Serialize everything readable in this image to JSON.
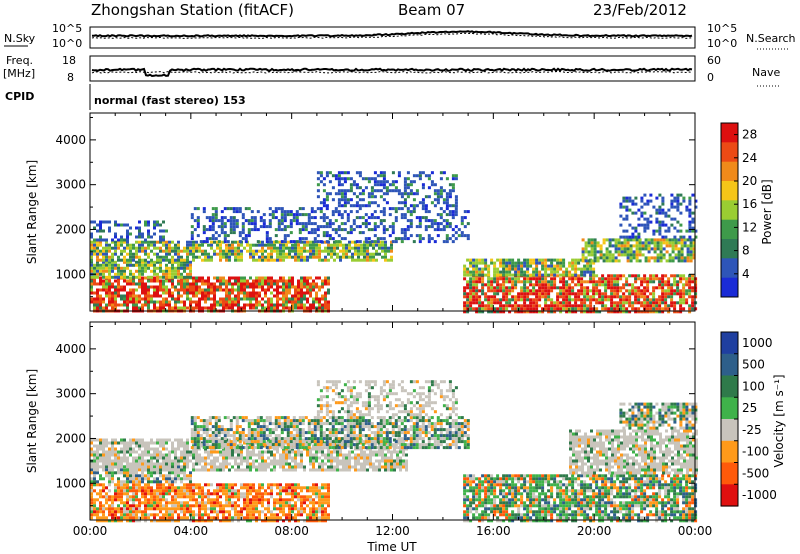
{
  "header": {
    "station": "Zhongshan Station (fitACF)",
    "beam": "Beam 07",
    "date": "23/Feb/2012"
  },
  "strips": {
    "nsky": {
      "label": "N.Sky",
      "tick_top": "10^5",
      "tick_bottom": "10^0",
      "right_label": "N.Search",
      "right_top": "10^5",
      "right_bottom": "10^0"
    },
    "freq": {
      "label_top": "Freq.",
      "label_bottom": "[MHz]",
      "tick_top": "18",
      "tick_bottom": "8",
      "right_label": "Nave",
      "right_top": "60",
      "right_bottom": "0"
    },
    "cpid": {
      "label": "CPID",
      "text": "normal (fast stereo) 153"
    }
  },
  "colors": {
    "power": [
      "#1a2bd6",
      "#2e55b8",
      "#2f7a55",
      "#3e9a4a",
      "#9acd32",
      "#f5c518",
      "#f08a1a",
      "#ec4a15",
      "#dd1010"
    ],
    "velocity": [
      "#e01010",
      "#ff5a0a",
      "#ff9a1a",
      "#c8c4bc",
      "#3fb24a",
      "#2f7a4a",
      "#2e5f8a",
      "#1f3fa0"
    ]
  },
  "chart_data": [
    {
      "type": "heatmap",
      "title": "",
      "xlabel": "",
      "ylabel": "Slant Range [km]",
      "x_range": [
        "00:00",
        "24:00"
      ],
      "ylim": [
        180,
        4600
      ],
      "x_ticks": [
        "00:00",
        "04:00",
        "08:00",
        "12:00",
        "16:00",
        "20:00",
        "00:00"
      ],
      "y_ticks": [
        1000,
        2000,
        3000,
        4000
      ],
      "colorbar": {
        "label": "Power [dB]",
        "ticks": [
          4,
          8,
          12,
          16,
          20,
          24,
          28
        ],
        "range": [
          0,
          30
        ]
      },
      "regions": [
        {
          "t0": 0.0,
          "t1": 9.5,
          "r0": 180,
          "r1": 950,
          "level": "high"
        },
        {
          "t0": 0.0,
          "t1": 4.0,
          "r0": 950,
          "r1": 1300,
          "level": "mid"
        },
        {
          "t0": 0.0,
          "t1": 12.0,
          "r0": 1300,
          "r1": 1750,
          "level": "mid"
        },
        {
          "t0": 0.0,
          "t1": 3.0,
          "r0": 1750,
          "r1": 2200,
          "level": "low"
        },
        {
          "t0": 4.0,
          "t1": 15.0,
          "r0": 1750,
          "r1": 2500,
          "level": "low"
        },
        {
          "t0": 9.0,
          "t1": 14.5,
          "r0": 2500,
          "r1": 3300,
          "level": "low"
        },
        {
          "t0": 14.8,
          "t1": 24.0,
          "r0": 180,
          "r1": 1000,
          "level": "high"
        },
        {
          "t0": 14.8,
          "t1": 20.0,
          "r0": 1000,
          "r1": 1350,
          "level": "mid"
        },
        {
          "t0": 19.5,
          "t1": 24.0,
          "r0": 1300,
          "r1": 1800,
          "level": "mid"
        },
        {
          "t0": 21.0,
          "t1": 24.0,
          "r0": 1800,
          "r1": 2800,
          "level": "low"
        }
      ]
    },
    {
      "type": "heatmap",
      "title": "",
      "xlabel": "Time UT",
      "ylabel": "Slant Range [km]",
      "x_range": [
        "00:00",
        "24:00"
      ],
      "ylim": [
        180,
        4600
      ],
      "x_ticks": [
        "00:00",
        "04:00",
        "08:00",
        "12:00",
        "16:00",
        "20:00",
        "00:00"
      ],
      "y_ticks": [
        1000,
        2000,
        3000,
        4000
      ],
      "colorbar": {
        "label": "Velocity [m s⁻¹]",
        "ticks": [
          1000,
          500,
          100,
          25,
          -25,
          -100,
          -500,
          -1000
        ]
      },
      "regions": [
        {
          "t0": 0.0,
          "t1": 9.5,
          "r0": 180,
          "r1": 1000,
          "level": "away"
        },
        {
          "t0": 0.0,
          "t1": 4.0,
          "r0": 1000,
          "r1": 1400,
          "level": "mixed"
        },
        {
          "t0": 0.0,
          "t1": 12.5,
          "r0": 1300,
          "r1": 2000,
          "level": "ground"
        },
        {
          "t0": 4.0,
          "t1": 15.0,
          "r0": 1800,
          "r1": 2500,
          "level": "mixed"
        },
        {
          "t0": 9.0,
          "t1": 14.5,
          "r0": 2500,
          "r1": 3300,
          "level": "ground"
        },
        {
          "t0": 14.8,
          "t1": 24.0,
          "r0": 180,
          "r1": 1200,
          "level": "toward"
        },
        {
          "t0": 19.0,
          "t1": 24.0,
          "r0": 1200,
          "r1": 2200,
          "level": "ground"
        },
        {
          "t0": 21.0,
          "t1": 24.0,
          "r0": 2200,
          "r1": 2800,
          "level": "mixed"
        }
      ]
    }
  ]
}
